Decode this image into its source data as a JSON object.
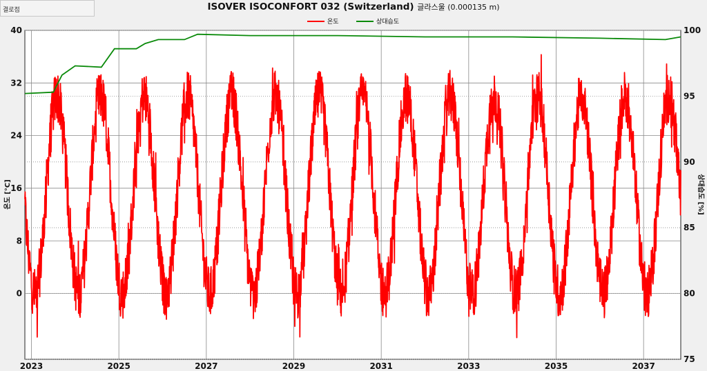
{
  "panel": {
    "label": "결로점"
  },
  "chart_data": {
    "type": "line",
    "title_main": "ISOVER ISOCONFORT 032 (Switzerland)",
    "title_suffix": "글라스울 (0.000135 m)",
    "ylabel_left": "온도 [°C]",
    "ylabel_right": "상대습도 [%]",
    "ylim_left": [
      -10,
      40
    ],
    "ylim_right": [
      75,
      100
    ],
    "yticks_left": [
      0,
      8,
      16,
      24,
      32,
      40
    ],
    "yticks_right": [
      75,
      80,
      85,
      90,
      95,
      100
    ],
    "xlim": [
      2022.85,
      2037.85
    ],
    "xticks": [
      2023,
      2025,
      2027,
      2029,
      2031,
      2033,
      2035,
      2037
    ],
    "grid": true,
    "legend_position": "top-center",
    "series": [
      {
        "name": "온도",
        "axis": "left",
        "color": "#ff0000",
        "mean": 15,
        "amplitude": 15,
        "noise": 4,
        "peak_phase_year_fraction": 0.58
      },
      {
        "name": "상대습도",
        "axis": "right",
        "color": "#0a8a0a",
        "points": [
          [
            2022.85,
            95.2
          ],
          [
            2023.5,
            95.3
          ],
          [
            2023.7,
            96.6
          ],
          [
            2024.0,
            97.3
          ],
          [
            2024.6,
            97.2
          ],
          [
            2024.9,
            98.6
          ],
          [
            2025.4,
            98.6
          ],
          [
            2025.6,
            99.0
          ],
          [
            2025.9,
            99.3
          ],
          [
            2026.5,
            99.3
          ],
          [
            2026.8,
            99.7
          ],
          [
            2028.0,
            99.6
          ],
          [
            2030.0,
            99.6
          ],
          [
            2032.0,
            99.5
          ],
          [
            2034.0,
            99.5
          ],
          [
            2036.0,
            99.4
          ],
          [
            2037.5,
            99.3
          ],
          [
            2037.85,
            99.5
          ]
        ]
      }
    ]
  }
}
